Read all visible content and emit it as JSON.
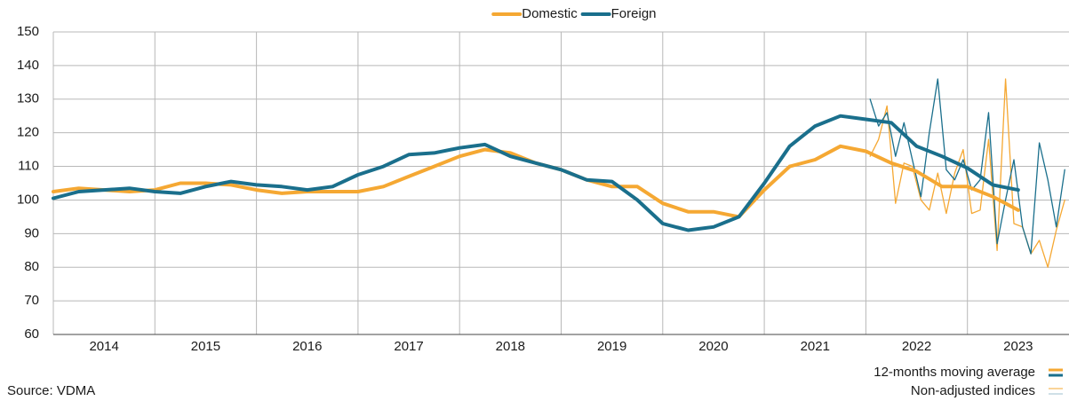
{
  "chart_data": {
    "type": "line",
    "source": "Source: VDMA",
    "notes": [
      "12-months moving average",
      "Non-adjusted indices"
    ],
    "xlim": [
      2014,
      2024
    ],
    "xticks": [
      2014,
      2015,
      2016,
      2017,
      2018,
      2019,
      2020,
      2021,
      2022,
      2023
    ],
    "ylim": [
      60,
      150
    ],
    "yticks": [
      60,
      70,
      80,
      90,
      100,
      110,
      120,
      130,
      140,
      150
    ],
    "grid": true,
    "legend": "top",
    "x": [
      2014,
      2014.25,
      2014.5,
      2014.75,
      2015,
      2015.25,
      2015.5,
      2015.75,
      2016,
      2016.25,
      2016.5,
      2016.75,
      2017,
      2017.25,
      2017.5,
      2017.75,
      2018,
      2018.25,
      2018.5,
      2018.75,
      2019,
      2019.25,
      2019.5,
      2019.75,
      2020,
      2020.25,
      2020.5,
      2020.75,
      2021,
      2021.25,
      2021.5,
      2021.75,
      2022,
      2022.25,
      2022.5,
      2022.75,
      2023,
      2023.25,
      2023.5
    ],
    "raw_x": [
      2022.042,
      2022.125,
      2022.208,
      2022.292,
      2022.375,
      2022.458,
      2022.542,
      2022.625,
      2022.708,
      2022.792,
      2022.875,
      2022.958,
      2023.042,
      2023.125,
      2023.208,
      2023.292,
      2023.375,
      2023.458,
      2023.542,
      2023.625,
      2023.708,
      2023.792,
      2023.875,
      2023.958
    ],
    "series": [
      {
        "name": "Domestic",
        "color": "#f5a833",
        "values": [
          102.5,
          103.5,
          103,
          102.5,
          103,
          105,
          105,
          104.5,
          103,
          102,
          102.5,
          102.5,
          102.5,
          104,
          107,
          110,
          113,
          115,
          114,
          111,
          109,
          106,
          104,
          104,
          99,
          96.5,
          96.5,
          95,
          103,
          110,
          112,
          116,
          114.5,
          111,
          108.5,
          104,
          104,
          101,
          97
        ],
        "raw_values": [
          113,
          118,
          128,
          99,
          111,
          110,
          100,
          97,
          108,
          96,
          108,
          115,
          96,
          97,
          118,
          85,
          136,
          93,
          92,
          84,
          88,
          80,
          91,
          100
        ]
      },
      {
        "name": "Foreign",
        "color": "#1a6f8c",
        "values": [
          100.5,
          102.5,
          103,
          103.5,
          102.5,
          102,
          104,
          105.5,
          104.5,
          104,
          103,
          104,
          107.5,
          110,
          113.5,
          114,
          115.5,
          116.5,
          113,
          111,
          109,
          106,
          105.5,
          100,
          93,
          91,
          92,
          95,
          105,
          116,
          122,
          125,
          124,
          123,
          116,
          113,
          109.5,
          104.5,
          103
        ],
        "raw_values": [
          130,
          122,
          126,
          113,
          123,
          112,
          101,
          120,
          136,
          109,
          106,
          112,
          103,
          106,
          126,
          87,
          100,
          112,
          92,
          84,
          117,
          106,
          92,
          109
        ]
      }
    ]
  }
}
